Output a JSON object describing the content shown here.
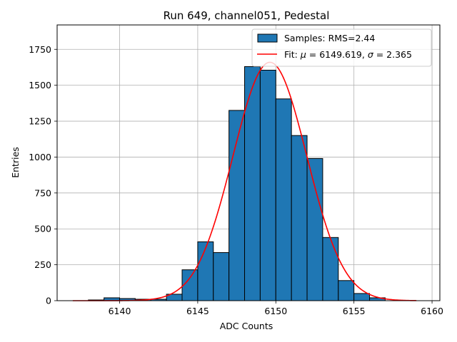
{
  "chart_data": {
    "type": "bar",
    "title": "Run 649, channel051, Pedestal",
    "xlabel": "ADC Counts",
    "ylabel": "Entries",
    "xlim": [
      6136,
      6160.5
    ],
    "ylim": [
      0,
      1920
    ],
    "xticks": [
      6140,
      6145,
      6150,
      6155,
      6160
    ],
    "yticks": [
      0,
      250,
      500,
      750,
      1000,
      1250,
      1500,
      1750
    ],
    "grid": true,
    "legend_position": "top-right",
    "histogram": {
      "name": "Samples: RMS=2.44",
      "color": "#1f77b4",
      "edge_color": "#000000",
      "bins": [
        {
          "x0": 6137.0,
          "x1": 6138.0,
          "count": 0
        },
        {
          "x0": 6138.0,
          "x1": 6139.0,
          "count": 5
        },
        {
          "x0": 6139.0,
          "x1": 6140.0,
          "count": 20
        },
        {
          "x0": 6140.0,
          "x1": 6141.0,
          "count": 15
        },
        {
          "x0": 6141.0,
          "x1": 6142.0,
          "count": 10
        },
        {
          "x0": 6142.0,
          "x1": 6143.0,
          "count": 10
        },
        {
          "x0": 6143.0,
          "x1": 6144.0,
          "count": 45
        },
        {
          "x0": 6144.0,
          "x1": 6145.0,
          "count": 215
        },
        {
          "x0": 6145.0,
          "x1": 6146.0,
          "count": 410
        },
        {
          "x0": 6146.0,
          "x1": 6147.0,
          "count": 335
        },
        {
          "x0": 6147.0,
          "x1": 6148.0,
          "count": 1325
        },
        {
          "x0": 6148.0,
          "x1": 6149.0,
          "count": 1630
        },
        {
          "x0": 6149.0,
          "x1": 6150.0,
          "count": 1605
        },
        {
          "x0": 6150.0,
          "x1": 6151.0,
          "count": 1405
        },
        {
          "x0": 6151.0,
          "x1": 6152.0,
          "count": 1150
        },
        {
          "x0": 6152.0,
          "x1": 6153.0,
          "count": 990
        },
        {
          "x0": 6153.0,
          "x1": 6154.0,
          "count": 440
        },
        {
          "x0": 6154.0,
          "x1": 6155.0,
          "count": 140
        },
        {
          "x0": 6155.0,
          "x1": 6156.0,
          "count": 50
        },
        {
          "x0": 6156.0,
          "x1": 6157.0,
          "count": 20
        }
      ]
    },
    "fit": {
      "legend_prefix": "Fit: ",
      "mu_symbol": "μ",
      "mu_value": " = 6149.619, ",
      "sigma_symbol": "σ",
      "sigma_value": " = 2.365",
      "color": "#ff0000",
      "mu": 6149.619,
      "sigma": 2.365,
      "amplitude": 1660,
      "x_range": [
        6137.0,
        6159.0
      ]
    }
  }
}
